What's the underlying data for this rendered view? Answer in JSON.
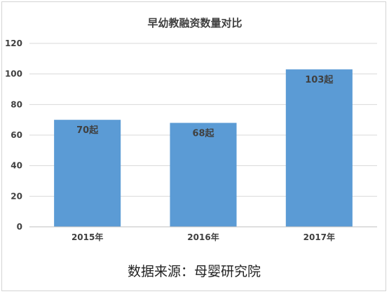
{
  "chart_data": {
    "type": "bar",
    "title": "早幼教融资数量对比",
    "categories": [
      "2015年",
      "2016年",
      "2017年"
    ],
    "values": [
      70,
      68,
      103
    ],
    "data_labels": [
      "70起",
      "68起",
      "103起"
    ],
    "yticks": [
      "0",
      "20",
      "40",
      "60",
      "80",
      "100",
      "120"
    ],
    "ylim": [
      0,
      120
    ],
    "xlabel": "",
    "ylabel": "",
    "grid": true,
    "bar_color": "#5B9BD5"
  },
  "source_text": "数据来源：母婴研究院"
}
